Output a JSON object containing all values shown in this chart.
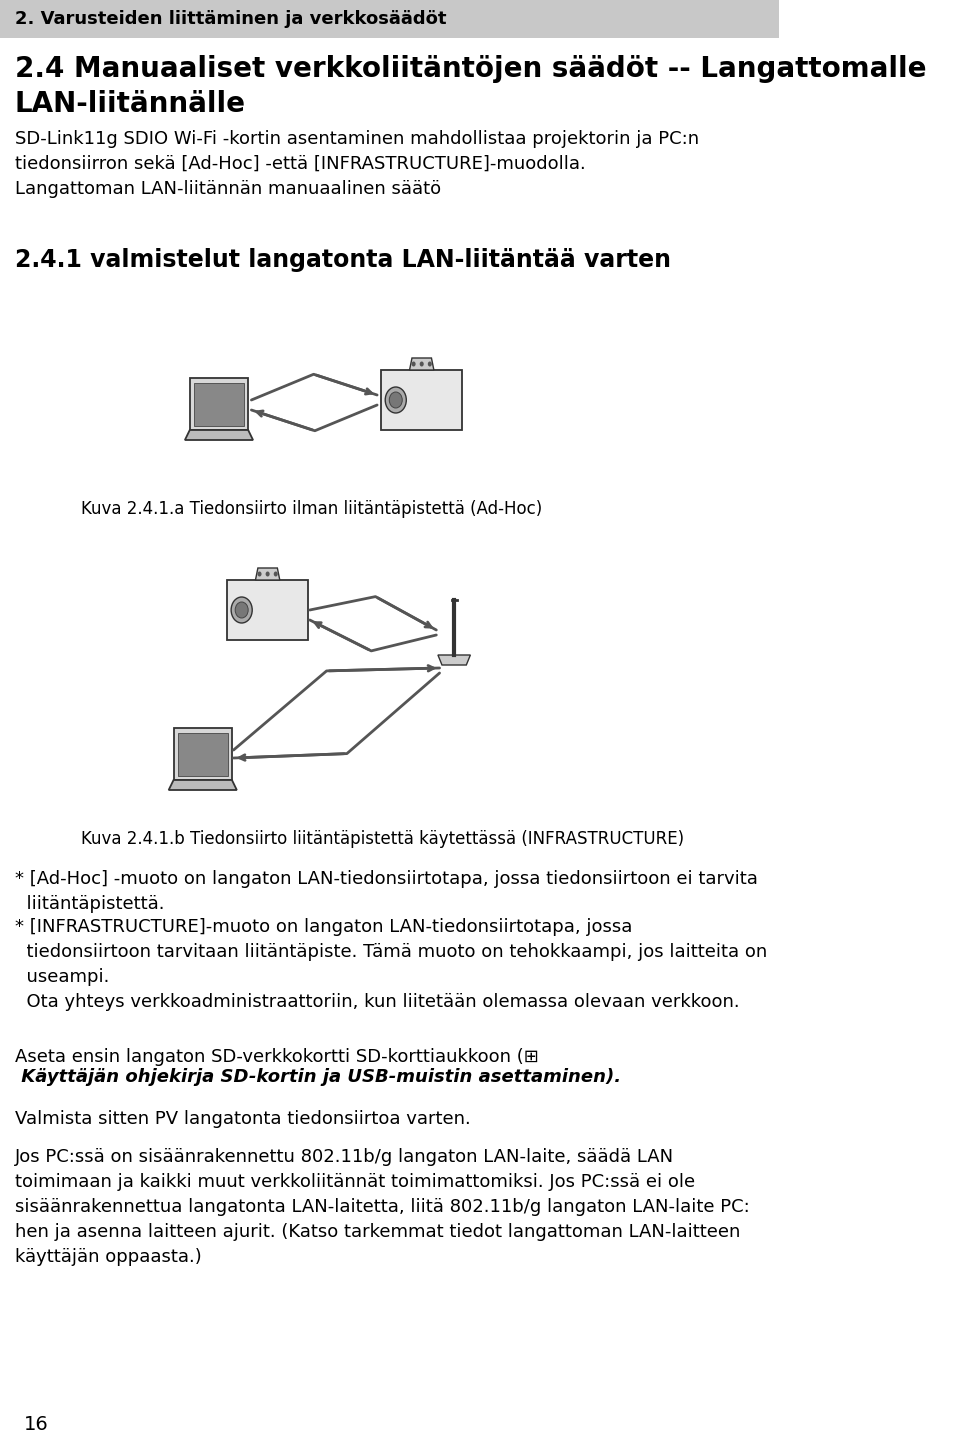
{
  "background_color": "#ffffff",
  "header_bar_color": "#c8c8c8",
  "header_text": "2. Varusteiden liittäminen ja verkkosäädöt",
  "header_text_color": "#000000",
  "header_fontsize": 13,
  "title_line1": "2.4 Manuaaliset verkkoliitäntöjen säädöt -- Langattomalle",
  "title_line2": "LAN-liitännälle",
  "title_fontsize": 20,
  "title_color": "#000000",
  "body_fontsize": 13,
  "body_color": "#000000",
  "body_text1": "SD-Link11g SDIO Wi-Fi -kortin asentaminen mahdollistaa projektorin ja PC:n\ntiedonsiirron sekä [Ad-Hoc] -että [INFRASTRUCTURE]-muodolla.\nLangattoman LAN-liitännän manuaalinen säätö",
  "section_title": "2.4.1 valmistelut langatonta LAN-liitäntää varten",
  "section_title_fontsize": 17,
  "caption1": "Kuva 2.4.1.a Tiedonsiirto ilman liitäntäpistettä (Ad-Hoc)",
  "caption2": "Kuva 2.4.1.b Tiedonsiirto liitäntäpistettä käytettässä (INFRASTRUCTURE)",
  "bullet1": "* [Ad-Hoc] -muoto on langaton LAN-tiedonsiirtotapa, jossa tiedonsiirtoon ei tarvita\n  liitäntäpistettä.",
  "bullet2": "* [INFRASTRUCTURE]-muoto on langaton LAN-tiedonsiirtotapa, jossa\n  tiedonsiirtoon tarvitaan liitäntäpiste. Tämä muoto on tehokkaampi, jos laitteita on\n  useampi.\n  Ota yhteys verkkoadministraattoriin, kun liitetään olemassa olevaan verkkoon.",
  "para1a": "Aseta ensin langaton SD-verkkokortti SD-korttiaukkoon (⊞",
  "para1b": " Käyttäjän ohjekirja SD-kortin ja USB-muistin asettaminen).",
  "para2": "Valmista sitten PV langatonta tiedonsiirtoa varten.",
  "para3": "Jos PC:ssä on sisäänrakennettu 802.11b/g langaton LAN-laite, säädä LAN\ntoimimaan ja kaikki muut verkkoliitännät toimimattomiksi. Jos PC:ssä ei ole\nsisäänrakennettua langatonta LAN-laitetta, liitä 802.11b/g langaton LAN-laite PC:\nhen ja asenna laitteen ajurit. (Katso tarkemmat tiedot langattoman LAN-laitteen\nkäyttäjän oppaasta.)",
  "page_num": "16",
  "caption_fontsize": 12,
  "small_fontsize": 12
}
